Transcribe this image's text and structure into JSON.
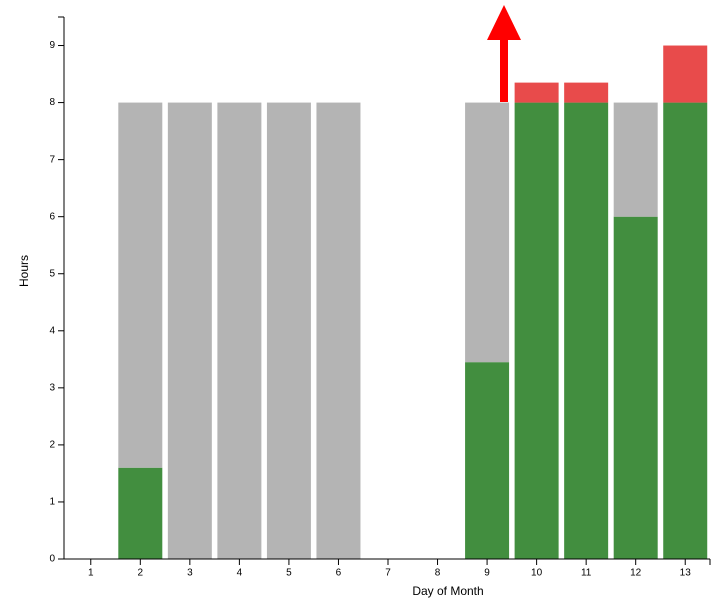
{
  "chart_data": {
    "type": "stacked-bar",
    "x_label": "Day of Month",
    "y_label": "Hours",
    "categories": [
      "1",
      "2",
      "3",
      "4",
      "5",
      "6",
      "7",
      "8",
      "9",
      "10",
      "11",
      "12",
      "13"
    ],
    "series": [
      {
        "color": "#428e3f",
        "values": [
          null,
          1.6,
          null,
          null,
          null,
          null,
          null,
          null,
          3.45,
          8,
          8,
          6,
          8
        ]
      },
      {
        "color": "#b4b4b4",
        "values": [
          null,
          6.4,
          8,
          8,
          8,
          8,
          null,
          null,
          4.55,
          null,
          null,
          2,
          null
        ]
      },
      {
        "color": "#e84b4b",
        "values": [
          null,
          null,
          null,
          null,
          null,
          null,
          null,
          null,
          null,
          0.35,
          0.35,
          null,
          1
        ]
      }
    ],
    "ylim": [
      0,
      9.5
    ],
    "yticks": [
      0,
      1,
      2,
      3,
      4,
      5,
      6,
      7,
      8,
      9
    ]
  }
}
